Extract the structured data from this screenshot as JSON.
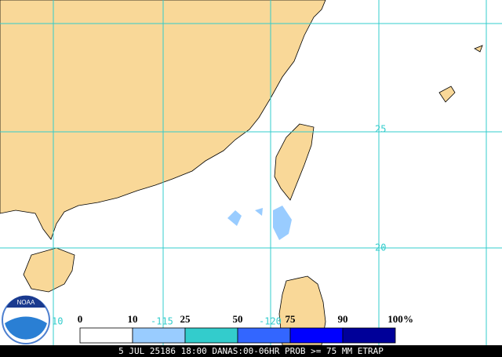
{
  "map": {
    "lat_labels": [
      "25",
      "20"
    ],
    "lon_labels": [
      "10",
      "-115",
      "-120"
    ]
  },
  "legend": {
    "labels": [
      "0",
      "10",
      "25",
      "50",
      "75",
      "90",
      "100"
    ],
    "unit": "%",
    "colors": [
      "#ffffff",
      "#99ccff",
      "#33cccc",
      "#3366ff",
      "#0000ff",
      "#000099"
    ]
  },
  "footer": "5 JUL 25186 18:00 DANAS:00-06HR PROB >= 75 MM ETRAP"
}
